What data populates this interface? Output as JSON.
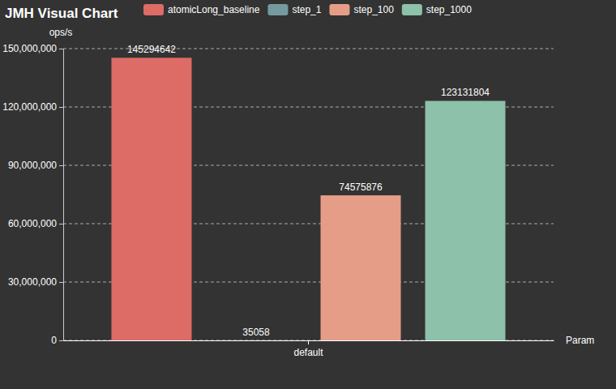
{
  "chart_data": {
    "type": "bar",
    "title": "JMH Visual Chart",
    "y_label": "ops/s",
    "x_label": "Param",
    "categories": [
      "default"
    ],
    "series": [
      {
        "name": "atomicLong_baseline",
        "color": "#dd6b66",
        "values": [
          145294642
        ]
      },
      {
        "name": "step_1",
        "color": "#759aa0",
        "values": [
          35058
        ]
      },
      {
        "name": "step_100",
        "color": "#e69d87",
        "values": [
          74575876
        ]
      },
      {
        "name": "step_1000",
        "color": "#8dc1a9",
        "values": [
          123131804
        ]
      }
    ],
    "ylim": [
      0,
      150000000
    ],
    "yticks": [
      0,
      {
        "value": 30000000,
        "label": "30,000,000"
      },
      {
        "value": 60000000,
        "label": "60,000,000"
      },
      {
        "value": 90000000,
        "label": "90,000,000"
      },
      {
        "value": 120000000,
        "label": "120,000,000"
      },
      {
        "value": 150000000,
        "label": "150,000,000"
      }
    ],
    "grid": true,
    "legend": "top",
    "data_labels": true
  }
}
